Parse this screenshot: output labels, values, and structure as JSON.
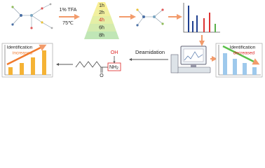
{
  "conditions": {
    "reagent": "1% TFA",
    "temperature": "75℃"
  },
  "times": [
    "1h",
    "2h",
    "4h",
    "6h",
    "8h"
  ],
  "reaction": {
    "label": "Deamidation"
  },
  "structure": {
    "hydroxyl": "OH",
    "oxygen": "O",
    "amine": "NH",
    "amine_subscript": "2"
  },
  "left_panel": {
    "title": "Identification",
    "trend": "increased"
  },
  "right_panel": {
    "title": "Identification",
    "trend": "decreased"
  }
}
